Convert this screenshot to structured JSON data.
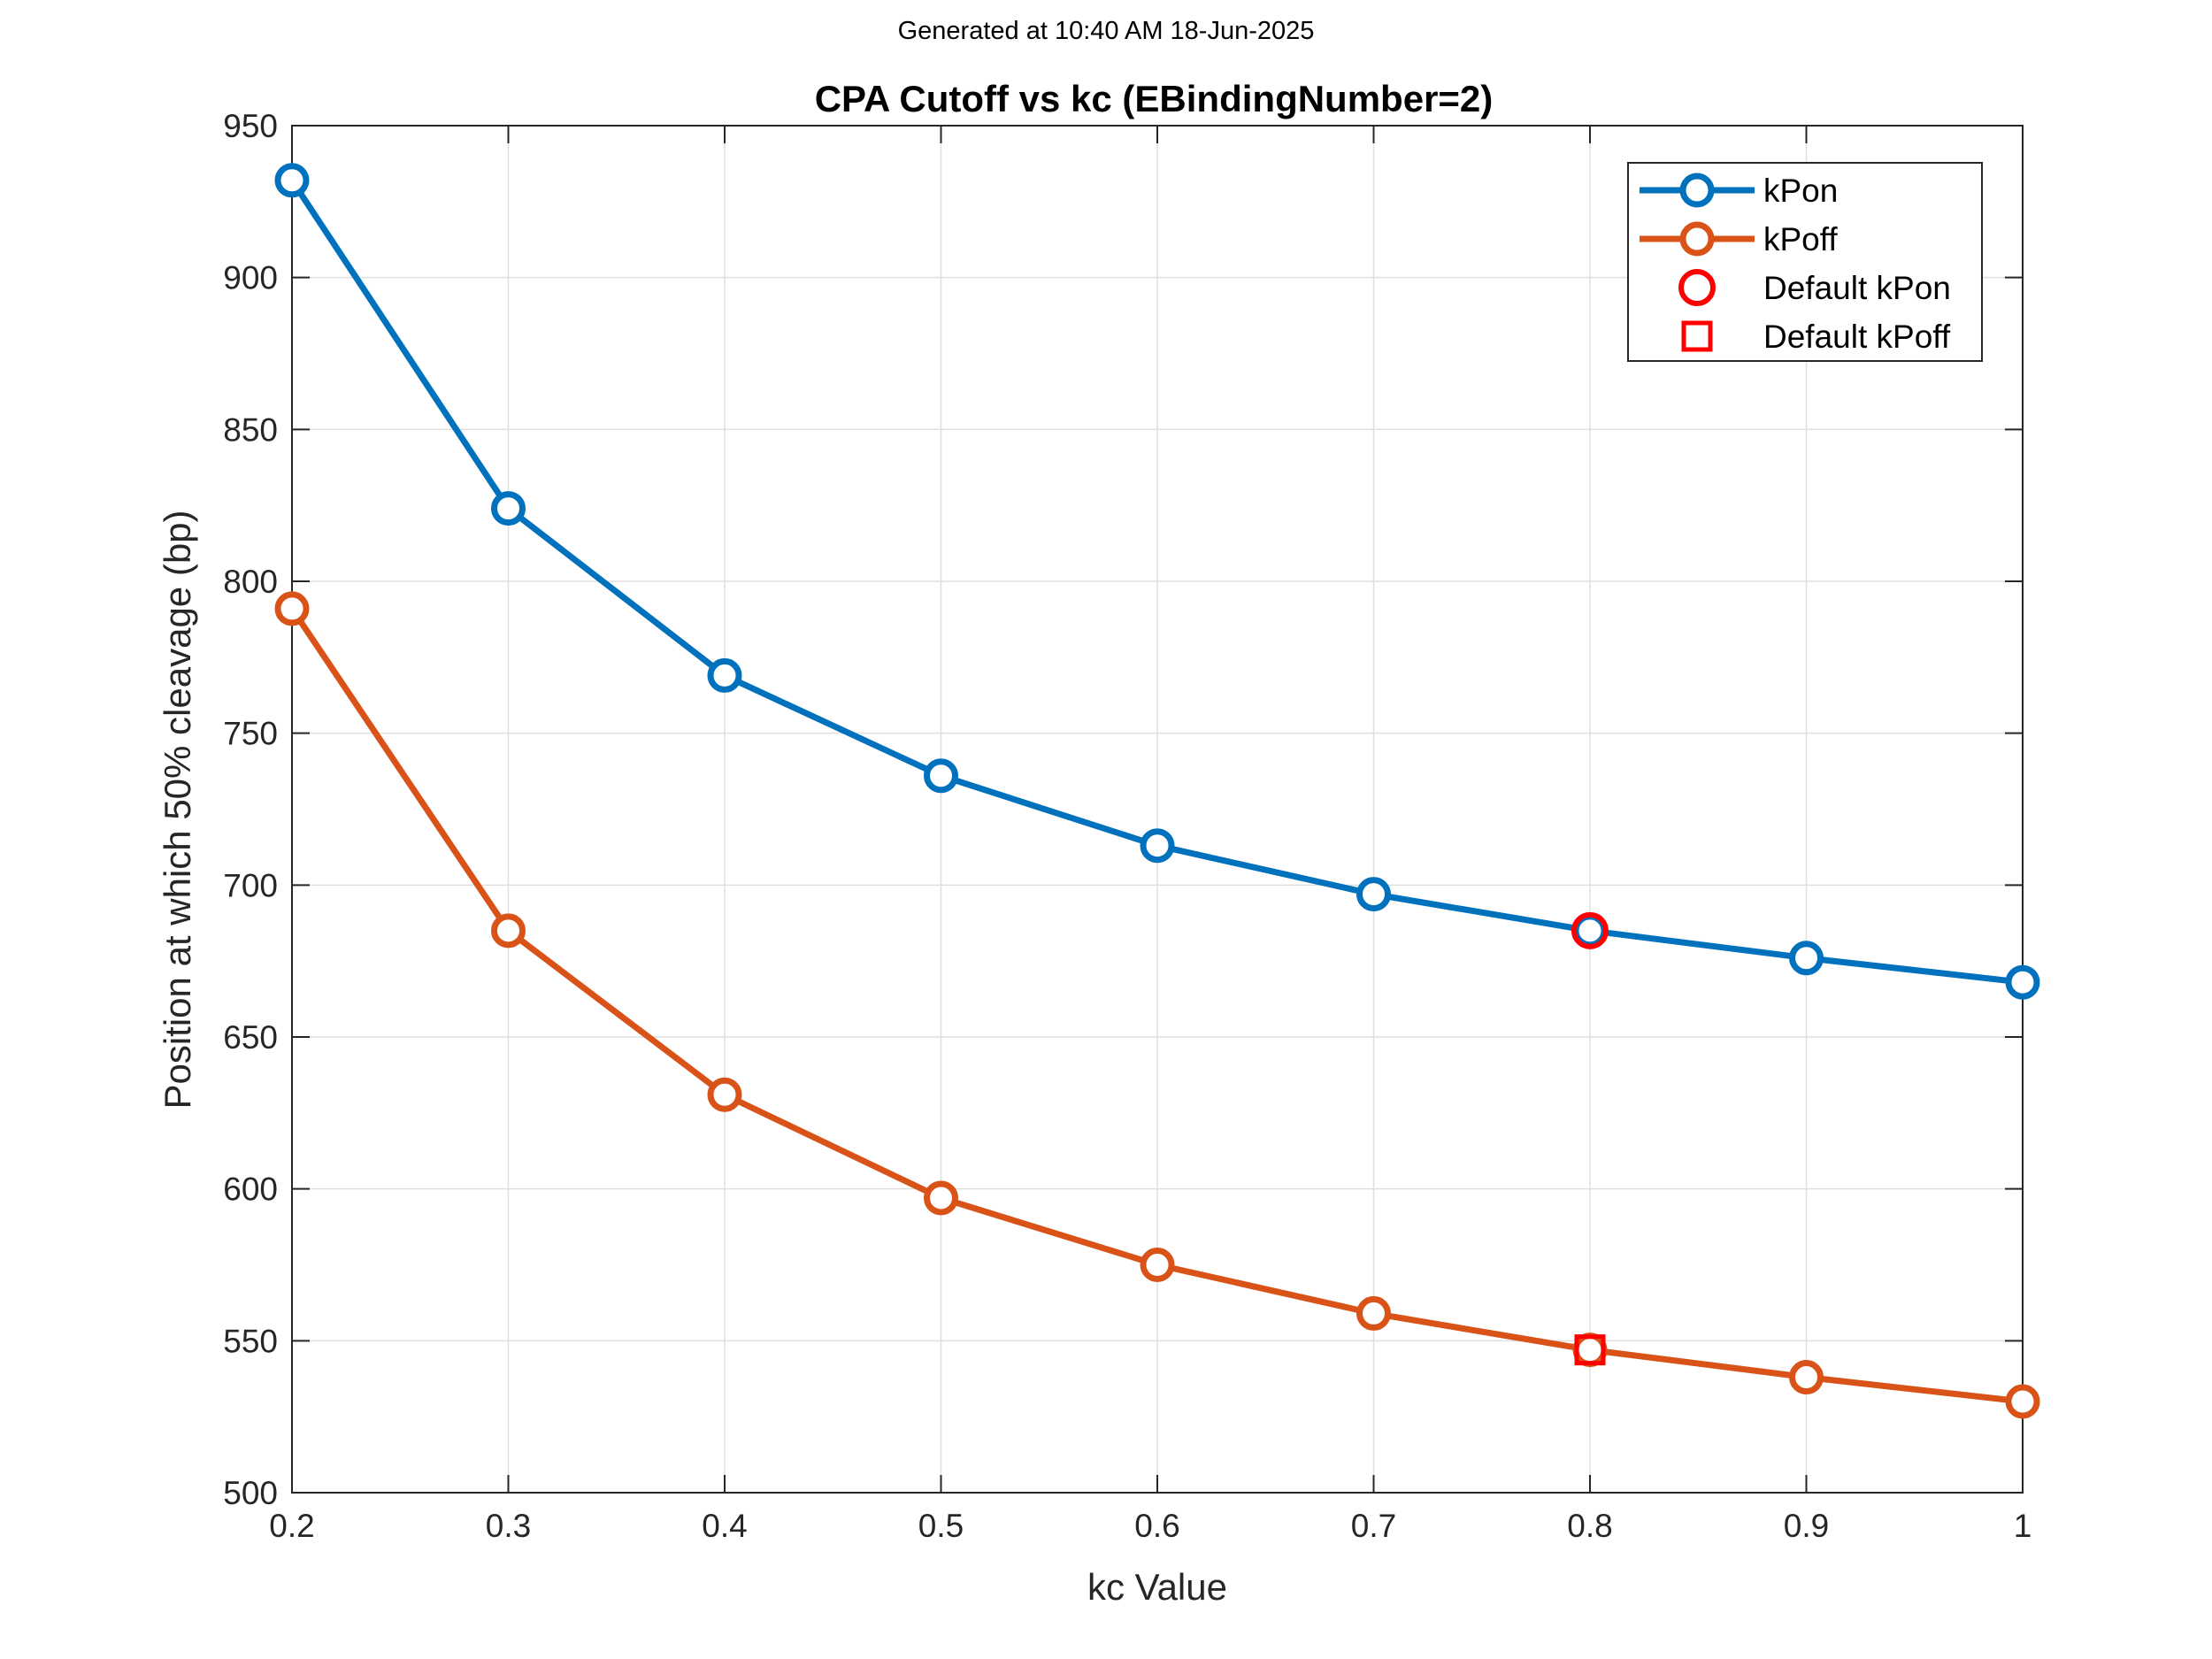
{
  "header": {
    "generated": "Generated at 10:40 AM 18-Jun-2025"
  },
  "chart_data": {
    "type": "line",
    "title": "CPA Cutoff vs kc (EBindingNumber=2)",
    "xlabel": "kc Value",
    "ylabel": "Position at which 50% cleavage (bp)",
    "xlim": [
      0.2,
      1
    ],
    "ylim": [
      500,
      950
    ],
    "xticks": [
      0.2,
      0.3,
      0.4,
      0.5,
      0.6,
      0.7,
      0.8,
      0.9,
      1
    ],
    "xtick_labels": [
      "0.2",
      "0.3",
      "0.4",
      "0.5",
      "0.6",
      "0.7",
      "0.8",
      "0.9",
      "1"
    ],
    "yticks": [
      500,
      550,
      600,
      650,
      700,
      750,
      800,
      850,
      900,
      950
    ],
    "ytick_labels": [
      "500",
      "550",
      "600",
      "650",
      "700",
      "750",
      "800",
      "850",
      "900",
      "950"
    ],
    "grid": true,
    "legend_position": "top-right",
    "x": [
      0.2,
      0.3,
      0.4,
      0.5,
      0.6,
      0.7,
      0.8,
      0.9,
      1.0
    ],
    "series": [
      {
        "name": "kPon",
        "color": "#0072BD",
        "marker": "circle",
        "values": [
          932,
          824,
          769,
          736,
          713,
          697,
          685,
          676,
          668
        ]
      },
      {
        "name": "kPoff",
        "color": "#D95319",
        "marker": "circle",
        "values": [
          791,
          685,
          631,
          597,
          575,
          559,
          547,
          538,
          530
        ]
      }
    ],
    "highlights": [
      {
        "name": "Default kPon",
        "x": 0.8,
        "y": 685,
        "marker": "circle",
        "color": "#FF0000"
      },
      {
        "name": "Default kPoff",
        "x": 0.8,
        "y": 547,
        "marker": "square",
        "color": "#FF0000"
      }
    ]
  }
}
